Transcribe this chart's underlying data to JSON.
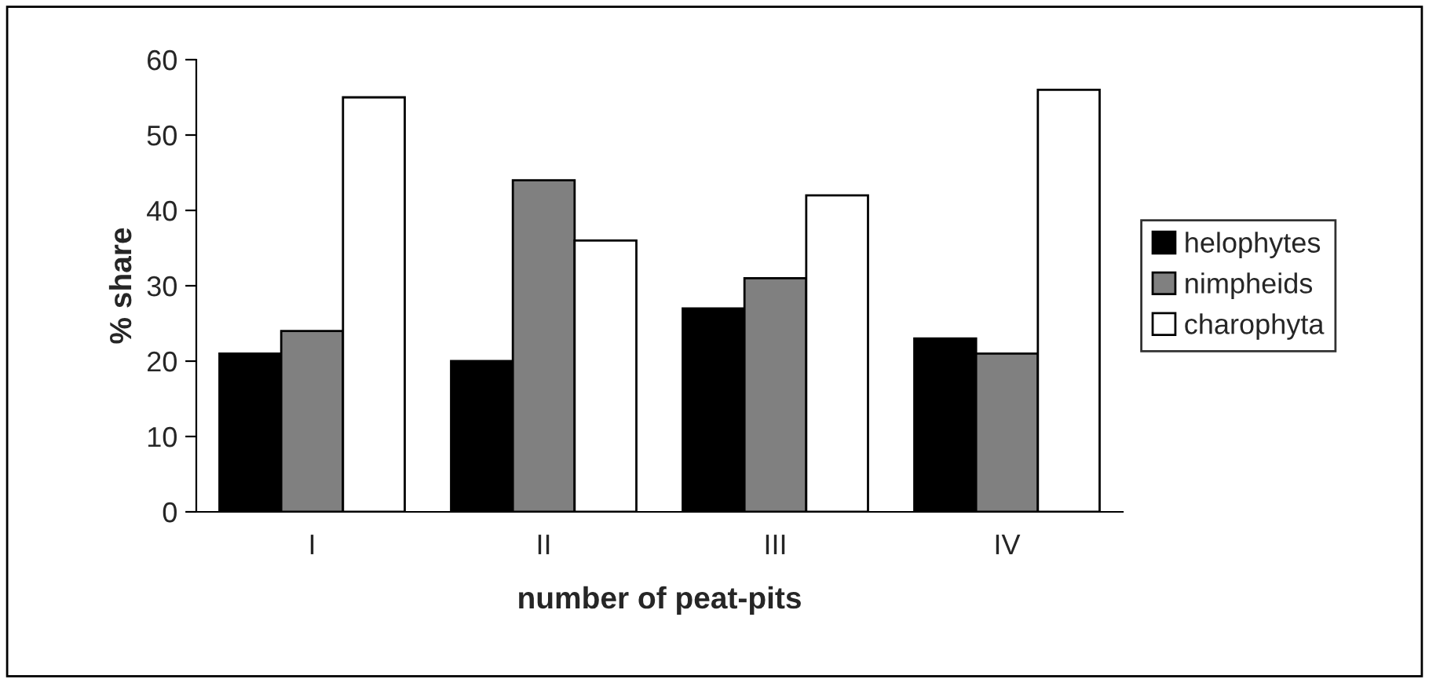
{
  "chart_data": {
    "type": "bar",
    "xlabel": "number of peat-pits",
    "ylabel": "% share",
    "categories": [
      "I",
      "II",
      "III",
      "IV"
    ],
    "series": [
      {
        "name": "helophytes",
        "color": "#000000",
        "values": [
          21,
          20,
          27,
          23
        ]
      },
      {
        "name": "nimpheids",
        "color": "#808080",
        "values": [
          24,
          44,
          31,
          21
        ]
      },
      {
        "name": "charophyta",
        "color": "#ffffff",
        "values": [
          55,
          36,
          42,
          56
        ]
      }
    ],
    "ylim": [
      0,
      60
    ],
    "yticks": [
      0,
      10,
      20,
      30,
      40,
      50,
      60
    ],
    "grid": false,
    "legend": "right"
  }
}
